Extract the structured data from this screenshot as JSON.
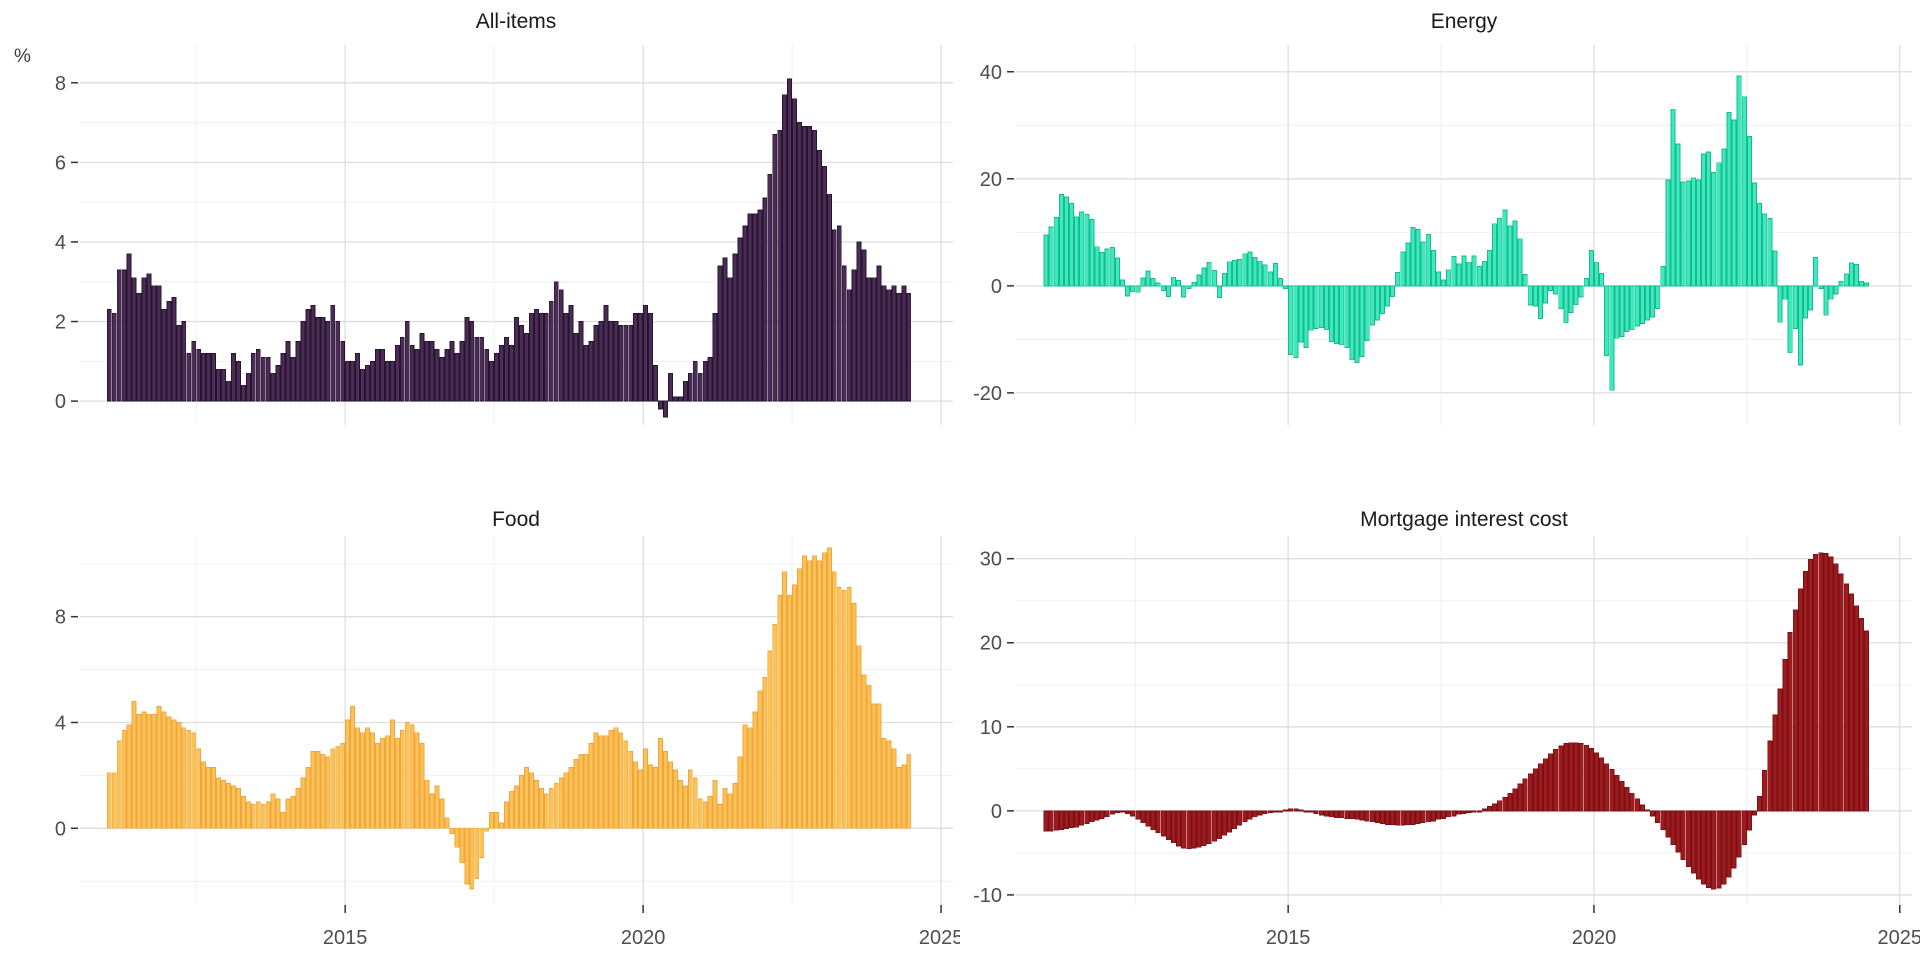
{
  "y_axis_unit": "%",
  "colors": {
    "background": "#ffffff",
    "grid_major": "#dedede",
    "grid_minor": "#efefef",
    "tick_mark": "#333333",
    "axis_text": "#4d4d4d",
    "title_text": "#1a1a1a",
    "all_items_fill": "#4a2c55",
    "all_items_stroke": "#261430",
    "energy_fill": "#3fe8bd",
    "energy_stroke": "#14bc90",
    "food_fill": "#fbc357",
    "food_stroke": "#f0a53d",
    "mortgage_fill": "#9e1c20",
    "mortgage_stroke": "#7a1013"
  },
  "x_axis": {
    "tick_labels": [
      "2015",
      "2020",
      "2025"
    ],
    "tick_years": [
      2015,
      2020,
      2025
    ],
    "minor_years": [
      2012.5,
      2017.5,
      2022.5
    ],
    "frequency": "monthly",
    "start": "2011-01",
    "end": "2024-06",
    "labels_shown_on": "bottom row only"
  },
  "chart_data": [
    {
      "type": "bar",
      "title": "All-items",
      "ylabel": "%",
      "fill": "#4a2c55",
      "stroke": "#261430",
      "y_ticks": [
        0,
        2,
        4,
        6,
        8
      ],
      "y_minor": [
        1,
        3,
        5,
        7
      ],
      "ylim": [
        -0.6,
        8.95
      ],
      "x_monthly_start": "2011-01",
      "values": [
        2.3,
        2.2,
        3.3,
        3.3,
        3.7,
        3.1,
        2.7,
        3.1,
        3.2,
        2.9,
        2.9,
        2.3,
        2.5,
        2.6,
        1.9,
        2.0,
        1.2,
        1.5,
        1.3,
        1.2,
        1.2,
        1.2,
        0.8,
        0.8,
        0.5,
        1.2,
        1.0,
        0.4,
        0.7,
        1.2,
        1.3,
        1.1,
        1.1,
        0.7,
        0.9,
        1.2,
        1.5,
        1.1,
        1.5,
        2.0,
        2.3,
        2.4,
        2.1,
        2.1,
        2.0,
        2.4,
        2.0,
        1.5,
        1.0,
        1.0,
        1.2,
        0.8,
        0.9,
        1.0,
        1.3,
        1.3,
        1.0,
        1.0,
        1.4,
        1.6,
        2.0,
        1.4,
        1.3,
        1.7,
        1.5,
        1.5,
        1.3,
        1.1,
        1.3,
        1.5,
        1.2,
        1.5,
        2.1,
        2.0,
        1.6,
        1.6,
        1.3,
        1.0,
        1.2,
        1.4,
        1.6,
        1.4,
        2.1,
        1.9,
        1.7,
        2.2,
        2.3,
        2.2,
        2.2,
        2.5,
        3.0,
        2.8,
        2.2,
        2.4,
        1.7,
        2.0,
        1.4,
        1.5,
        1.9,
        2.0,
        2.4,
        2.0,
        2.0,
        1.9,
        1.9,
        1.9,
        2.2,
        2.2,
        2.4,
        2.2,
        0.9,
        -0.2,
        -0.4,
        0.7,
        0.1,
        0.1,
        0.5,
        0.7,
        1.0,
        0.7,
        1.0,
        1.1,
        2.2,
        3.4,
        3.6,
        3.1,
        3.7,
        4.1,
        4.4,
        4.7,
        4.7,
        4.8,
        5.1,
        5.7,
        6.7,
        6.8,
        7.7,
        8.1,
        7.6,
        7.0,
        6.9,
        6.9,
        6.8,
        6.3,
        5.9,
        5.2,
        4.3,
        4.4,
        3.4,
        2.8,
        3.3,
        4.0,
        3.8,
        3.1,
        3.1,
        3.4,
        2.9,
        2.8,
        2.9,
        2.7,
        2.9,
        2.7
      ]
    },
    {
      "type": "bar",
      "title": "Energy",
      "fill": "#3fe8bd",
      "stroke": "#14bc90",
      "y_ticks": [
        -20,
        0,
        20,
        40
      ],
      "y_minor": [
        -10,
        10,
        30
      ],
      "ylim": [
        -26,
        45
      ],
      "x_monthly_start": "2011-01",
      "values": [
        9.5,
        11.0,
        12.8,
        17.1,
        16.6,
        15.4,
        12.9,
        13.8,
        13.3,
        12.4,
        7.3,
        6.2,
        6.9,
        7.2,
        5.2,
        1.1,
        -1.9,
        -1.1,
        -1.2,
        1.5,
        2.8,
        1.4,
        0.5,
        -0.9,
        -2.0,
        1.6,
        1.0,
        -2.1,
        -0.5,
        0.6,
        2.0,
        3.3,
        4.4,
        2.9,
        -2.2,
        2.3,
        4.5,
        4.7,
        4.9,
        6.0,
        6.3,
        5.3,
        4.6,
        3.9,
        2.6,
        4.2,
        1.4,
        -0.5,
        -12.8,
        -13.4,
        -10.5,
        -11.5,
        -8.3,
        -8.0,
        -7.8,
        -8.2,
        -10.4,
        -10.8,
        -11.0,
        -11.5,
        -13.8,
        -14.3,
        -13.2,
        -10.2,
        -7.3,
        -6.4,
        -5.2,
        -3.8,
        -2.0,
        2.5,
        6.3,
        8.0,
        10.9,
        10.5,
        8.2,
        9.6,
        6.6,
        2.6,
        1.1,
        3.0,
        5.5,
        4.1,
        5.6,
        4.4,
        5.6,
        3.6,
        4.6,
        6.6,
        11.6,
        12.6,
        14.2,
        11.2,
        12.1,
        8.8,
        2.1,
        -3.6,
        -3.8,
        -6.1,
        -3.2,
        -0.9,
        -1.5,
        -4.2,
        -6.9,
        -5.0,
        -3.5,
        -2.1,
        1.4,
        6.6,
        4.4,
        2.3,
        -13.0,
        -19.5,
        -9.8,
        -9.5,
        -8.5,
        -8.2,
        -7.5,
        -7.0,
        -6.4,
        -5.8,
        -4.2,
        3.6,
        19.8,
        33.0,
        26.5,
        19.4,
        19.6,
        20.2,
        19.8,
        24.6,
        25.0,
        21.2,
        23.0,
        25.6,
        32.4,
        31.0,
        39.2,
        35.3,
        27.9,
        19.2,
        15.4,
        13.4,
        12.6,
        6.5,
        -6.8,
        -2.5,
        -12.5,
        -8.0,
        -14.8,
        -6.0,
        -4.5,
        5.3,
        -0.5,
        -5.5,
        -2.5,
        -1.5,
        0.8,
        2.2,
        4.3,
        4.0,
        0.8,
        0.5
      ]
    },
    {
      "type": "bar",
      "title": "Food",
      "fill": "#fbc357",
      "stroke": "#f0a53d",
      "y_ticks": [
        0,
        4,
        8
      ],
      "y_minor": [
        -2,
        2,
        6,
        10
      ],
      "ylim": [
        -2.9,
        11.05
      ],
      "x_monthly_start": "2011-01",
      "values": [
        2.1,
        2.1,
        3.3,
        3.7,
        3.9,
        4.8,
        4.3,
        4.4,
        4.3,
        4.3,
        4.6,
        4.4,
        4.2,
        4.1,
        4.0,
        3.8,
        3.7,
        3.6,
        3.0,
        2.5,
        2.3,
        2.3,
        1.9,
        1.8,
        1.7,
        1.6,
        1.5,
        1.2,
        1.0,
        0.9,
        1.0,
        0.9,
        1.0,
        1.3,
        1.1,
        0.6,
        1.1,
        1.2,
        1.5,
        1.9,
        2.3,
        2.9,
        2.9,
        2.8,
        2.7,
        3.0,
        3.1,
        3.2,
        4.1,
        4.6,
        3.8,
        3.6,
        3.8,
        3.6,
        3.2,
        3.4,
        3.5,
        4.1,
        3.4,
        3.7,
        4.0,
        3.9,
        3.6,
        3.2,
        1.8,
        1.3,
        1.6,
        1.1,
        0.4,
        -0.2,
        -0.7,
        -1.3,
        -2.1,
        -2.3,
        -1.9,
        -1.1,
        -0.1,
        0.6,
        0.6,
        0.2,
        1.0,
        1.4,
        1.6,
        2.0,
        2.3,
        2.1,
        1.8,
        1.5,
        1.3,
        1.5,
        1.7,
        1.9,
        2.1,
        2.3,
        2.6,
        2.8,
        2.8,
        3.2,
        3.6,
        3.5,
        3.5,
        3.7,
        3.8,
        3.6,
        3.3,
        2.9,
        2.5,
        2.2,
        3.0,
        2.4,
        2.3,
        3.4,
        2.9,
        2.5,
        2.2,
        1.8,
        1.6,
        2.2,
        1.9,
        1.1,
        1.0,
        1.2,
        1.8,
        0.9,
        1.5,
        1.3,
        1.7,
        2.7,
        3.9,
        3.8,
        4.4,
        5.2,
        5.7,
        6.7,
        7.7,
        8.8,
        9.7,
        8.8,
        9.2,
        9.8,
        10.3,
        10.1,
        10.3,
        10.1,
        10.4,
        10.6,
        9.7,
        9.1,
        9.0,
        9.1,
        8.5,
        6.9,
        5.8,
        5.4,
        4.7,
        4.7,
        3.4,
        3.3,
        3.0,
        2.3,
        2.4,
        2.8
      ]
    },
    {
      "type": "bar",
      "title": "Mortgage interest cost",
      "fill": "#9e1c20",
      "stroke": "#7a1013",
      "y_ticks": [
        -10,
        0,
        10,
        20,
        30
      ],
      "y_minor": [
        -5,
        5,
        15,
        25
      ],
      "ylim": [
        -11.2,
        32.7
      ],
      "x_monthly_start": "2011-01",
      "values": [
        -2.4,
        -2.4,
        -2.3,
        -2.2,
        -2.1,
        -2.0,
        -1.9,
        -1.7,
        -1.5,
        -1.3,
        -1.1,
        -0.9,
        -0.7,
        -0.4,
        -0.2,
        -0.1,
        -0.3,
        -0.6,
        -1.0,
        -1.4,
        -1.8,
        -2.2,
        -2.6,
        -3.0,
        -3.4,
        -3.8,
        -4.2,
        -4.4,
        -4.5,
        -4.4,
        -4.3,
        -4.1,
        -3.9,
        -3.6,
        -3.3,
        -2.9,
        -2.5,
        -2.1,
        -1.7,
        -1.3,
        -1.0,
        -0.7,
        -0.5,
        -0.3,
        -0.2,
        -0.1,
        0.0,
        0.1,
        0.2,
        0.2,
        0.1,
        0.0,
        -0.1,
        -0.3,
        -0.5,
        -0.6,
        -0.7,
        -0.8,
        -0.8,
        -0.9,
        -0.9,
        -1.0,
        -1.1,
        -1.2,
        -1.3,
        -1.4,
        -1.5,
        -1.6,
        -1.6,
        -1.7,
        -1.7,
        -1.6,
        -1.6,
        -1.5,
        -1.4,
        -1.3,
        -1.2,
        -1.0,
        -0.9,
        -0.7,
        -0.6,
        -0.4,
        -0.3,
        -0.2,
        -0.1,
        0.0,
        0.2,
        0.5,
        0.8,
        1.2,
        1.6,
        2.1,
        2.6,
        3.2,
        3.8,
        4.4,
        5.0,
        5.6,
        6.2,
        6.8,
        7.3,
        7.7,
        8.0,
        8.1,
        8.1,
        8.0,
        7.8,
        7.4,
        6.9,
        6.3,
        5.6,
        4.9,
        4.2,
        3.5,
        2.8,
        2.1,
        1.4,
        0.7,
        0.1,
        -0.6,
        -1.4,
        -2.2,
        -3.1,
        -4.0,
        -4.9,
        -5.8,
        -6.6,
        -7.4,
        -8.1,
        -8.7,
        -9.1,
        -9.3,
        -9.2,
        -8.7,
        -7.9,
        -6.8,
        -5.5,
        -4.0,
        -2.3,
        -0.5,
        1.7,
        4.8,
        8.3,
        11.4,
        14.5,
        18.0,
        21.2,
        23.9,
        26.4,
        28.5,
        29.9,
        30.5,
        30.7,
        30.6,
        30.2,
        29.4,
        28.2,
        27.0,
        25.8,
        24.4,
        22.9,
        21.4
      ]
    }
  ]
}
